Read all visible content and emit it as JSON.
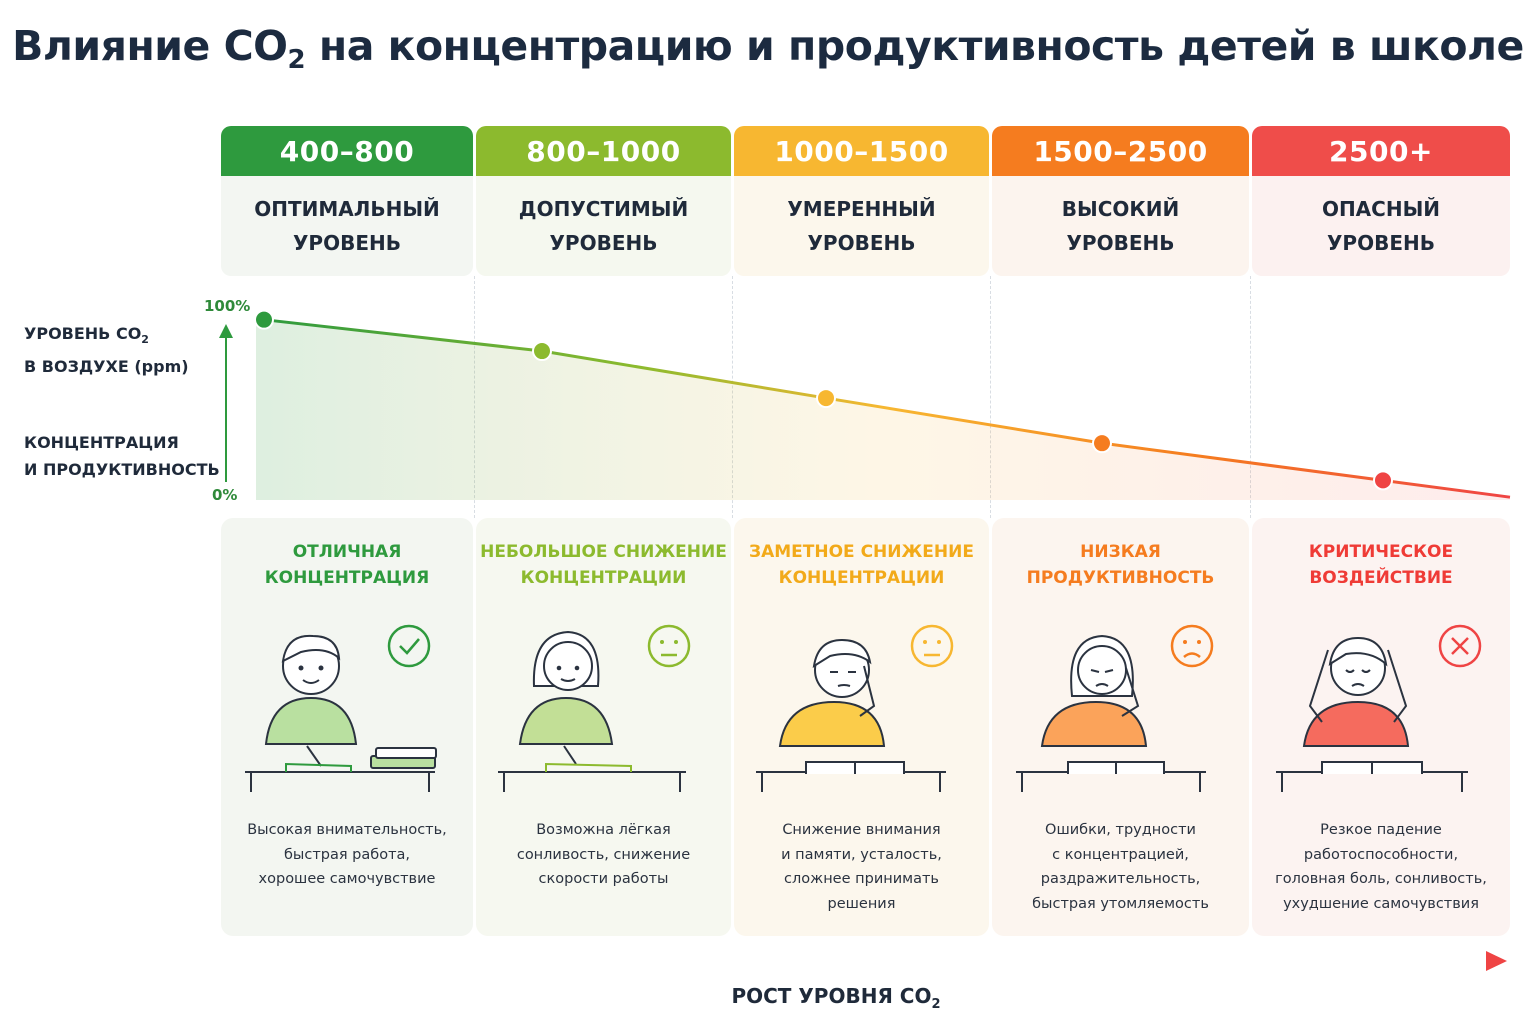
{
  "title": {
    "main": "Влияние CO",
    "sub": "2",
    "rest": " на концентрацию и продуктивность детей в школе"
  },
  "y_axis": {
    "top_tick": "100%",
    "bottom_tick": "0%",
    "label1_line1": "УРОВЕНЬ CO",
    "label1_sub": "2",
    "label1_line2": "В ВОЗДУХЕ (ppm)",
    "label2_line1": "КОНЦЕНТРАЦИЯ",
    "label2_line2": "И ПРОДУКТИВНОСТЬ"
  },
  "x_axis": {
    "label": "РОСТ УРОВНЯ CO",
    "label_sub": "2"
  },
  "colors": {
    "green": "#2e9a3e",
    "lime": "#8cba2e",
    "yellow": "#f7b731",
    "orange": "#f57c1f",
    "red": "#ef4444"
  },
  "levels": [
    {
      "range": "400–800",
      "line1": "ОПТИМАЛЬНЫЙ",
      "line2": "УРОВЕНЬ",
      "state1": "ОТЛИЧНАЯ",
      "state2": "КОНЦЕНТРАЦИЯ",
      "desc1": "Высокая внимательность,",
      "desc2": "быстрая работа,",
      "desc3": "хорошее самочувствие",
      "desc4": "",
      "mood": "check",
      "productivity": 92
    },
    {
      "range": "800–1000",
      "line1": "ДОПУСТИМЫЙ",
      "line2": "УРОВЕНЬ",
      "state1": "НЕБОЛЬШОЕ СНИЖЕНИЕ",
      "state2": "КОНЦЕНТРАЦИИ",
      "desc1": "Возможна лёгкая",
      "desc2": "сонливость, снижение",
      "desc3": "скорости работы",
      "desc4": "",
      "mood": "neutral",
      "productivity": 76
    },
    {
      "range": "1000–1500",
      "line1": "УМЕРЕННЫЙ",
      "line2": "УРОВЕНЬ",
      "state1": "ЗАМЕТНОЕ СНИЖЕНИЕ",
      "state2": "КОНЦЕНТРАЦИИ",
      "desc1": "Снижение внимания",
      "desc2": "и памяти, усталость,",
      "desc3": "сложнее принимать",
      "desc4": "решения",
      "mood": "neutral",
      "productivity": 52
    },
    {
      "range": "1500–2500",
      "line1": "ВЫСОКИЙ",
      "line2": "УРОВЕНЬ",
      "state1": "НИЗКАЯ",
      "state2": "ПРОДУКТИВНОСТЬ",
      "desc1": "Ошибки, трудности",
      "desc2": "с концентрацией,",
      "desc3": "раздражительность,",
      "desc4": "быстрая утомляемость",
      "mood": "sad",
      "productivity": 29
    },
    {
      "range": "2500+",
      "line1": "ОПАСНЫЙ",
      "line2": "УРОВЕНЬ",
      "state1": "КРИТИЧЕСКОЕ",
      "state2": "ВОЗДЕЙСТВИЕ",
      "desc1": "Резкое падение работоспособности,",
      "desc2": "головная боль, сонливость,",
      "desc3": "ухудшение самочувствия",
      "desc4": "",
      "mood": "cross",
      "productivity": 10
    }
  ]
}
